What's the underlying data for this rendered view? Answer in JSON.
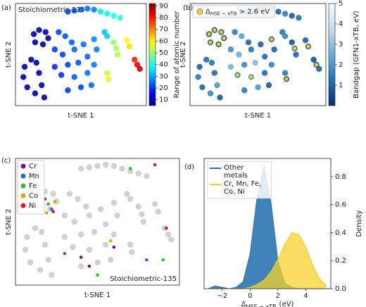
{
  "chart_data": [
    {
      "type": "scatter",
      "panel_label": "(a)",
      "annotation": "Stoichiometric-135",
      "annotation_corner": "upper left",
      "x_label": "t-SNE 1",
      "y_label": "t-SNE 2",
      "xlim": [
        0,
        100
      ],
      "ylim": [
        0,
        100
      ],
      "x": [
        40,
        45,
        50,
        55,
        60,
        65,
        70,
        75,
        80,
        14,
        18,
        23,
        25,
        21,
        15,
        12,
        7,
        6,
        9,
        15,
        22,
        20,
        18,
        16,
        33,
        38,
        43,
        30,
        36,
        45,
        52,
        40,
        48,
        55,
        35,
        45,
        55,
        60,
        50,
        40,
        58,
        30,
        60,
        62,
        75,
        77,
        78,
        85,
        87,
        70,
        71,
        91,
        93,
        95,
        68,
        70
      ],
      "y": [
        92,
        93,
        94,
        95,
        94,
        92,
        90,
        88,
        86,
        70,
        74,
        72,
        66,
        60,
        62,
        45,
        38,
        28,
        18,
        12,
        8,
        20,
        32,
        42,
        72,
        68,
        62,
        55,
        50,
        55,
        60,
        40,
        42,
        48,
        30,
        28,
        32,
        40,
        18,
        15,
        20,
        38,
        65,
        55,
        62,
        56,
        50,
        64,
        58,
        32,
        26,
        45,
        40,
        36,
        72,
        68
      ],
      "c": [
        22,
        24,
        25,
        26,
        27,
        36,
        38,
        40,
        42,
        8,
        8,
        9,
        8,
        9,
        8,
        9,
        8,
        9,
        10,
        9,
        8,
        10,
        9,
        9,
        22,
        23,
        24,
        21,
        22,
        25,
        26,
        22,
        23,
        25,
        20,
        24,
        26,
        27,
        22,
        21,
        25,
        20,
        28,
        27,
        50,
        52,
        53,
        60,
        62,
        55,
        57,
        78,
        82,
        86,
        33,
        34
      ],
      "colorbar": {
        "label": "Range of atomic number",
        "cmap": "jet",
        "clim": [
          5,
          92
        ],
        "ticks": [
          10,
          20,
          30,
          40,
          50,
          60,
          70,
          80,
          90
        ]
      }
    },
    {
      "type": "scatter",
      "panel_label": "(b)",
      "x_label": "t-SNE 1",
      "y_label": "t-SNE 2",
      "xlim": [
        0,
        100
      ],
      "ylim": [
        0,
        100
      ],
      "x": [
        40,
        45,
        50,
        55,
        60,
        65,
        70,
        75,
        80,
        14,
        18,
        23,
        25,
        21,
        15,
        12,
        7,
        6,
        9,
        15,
        22,
        20,
        18,
        16,
        33,
        38,
        43,
        30,
        36,
        45,
        52,
        40,
        48,
        55,
        35,
        45,
        55,
        60,
        50,
        40,
        58,
        30,
        60,
        62,
        75,
        77,
        78,
        85,
        87,
        70,
        71,
        91,
        93,
        95,
        68,
        70
      ],
      "y": [
        92,
        93,
        94,
        95,
        94,
        92,
        90,
        88,
        86,
        70,
        74,
        72,
        66,
        60,
        62,
        45,
        38,
        28,
        18,
        12,
        8,
        20,
        32,
        42,
        72,
        68,
        62,
        55,
        50,
        55,
        60,
        40,
        42,
        48,
        30,
        28,
        32,
        40,
        18,
        15,
        20,
        38,
        65,
        55,
        62,
        56,
        50,
        64,
        58,
        32,
        26,
        45,
        40,
        36,
        72,
        68
      ],
      "c": [
        1.5,
        2.0,
        1.2,
        1.8,
        2.2,
        1.0,
        1.5,
        0.8,
        1.2,
        0.6,
        0.8,
        1.0,
        0.7,
        0.9,
        1.1,
        1.2,
        0.9,
        1.4,
        1.0,
        1.6,
        0.8,
        2.0,
        1.1,
        1.3,
        1.5,
        2.2,
        1.0,
        1.8,
        2.5,
        1.3,
        0.9,
        1.7,
        2.8,
        1.2,
        1.9,
        2.4,
        1.1,
        1.6,
        2.0,
        1.4,
        0.8,
        2.6,
        1.3,
        1.0,
        0.7,
        1.5,
        1.0,
        0.9,
        1.2,
        1.4,
        0.8,
        0.6,
        1.1,
        0.9,
        1.3,
        1.6
      ],
      "highlight": {
        "name": {
          "symbol": "Δ",
          "sub": "HSE − xTB",
          "rest": "> 2.6 eV"
        },
        "color": "#f2d22e",
        "x": [
          14,
          18,
          23,
          25,
          21,
          15,
          77,
          93,
          60,
          87,
          71,
          55,
          45,
          35
        ],
        "y": [
          70,
          74,
          72,
          66,
          60,
          62,
          56,
          40,
          65,
          58,
          26,
          95,
          28,
          30
        ]
      },
      "legend": "upper left",
      "colorbar": {
        "label": "Bandgap (GFN1-xTB, eV)",
        "cmap": "Blues_r",
        "clim": [
          0,
          5
        ],
        "ticks": [
          1,
          2,
          3,
          4,
          5
        ]
      }
    },
    {
      "type": "scatter",
      "panel_label": "(c)",
      "annotation": "Stoichiometric-135",
      "annotation_corner": "lower right",
      "x_label": "t-SNE 1",
      "y_label": "t-SNE 2",
      "xlim": [
        0,
        100
      ],
      "ylim": [
        0,
        100
      ],
      "point_color": "#cccccc",
      "x": [
        40,
        45,
        50,
        55,
        60,
        65,
        70,
        75,
        80,
        14,
        18,
        23,
        25,
        21,
        15,
        12,
        7,
        6,
        9,
        15,
        22,
        20,
        18,
        16,
        33,
        38,
        43,
        30,
        36,
        45,
        52,
        40,
        48,
        55,
        35,
        45,
        55,
        60,
        50,
        40,
        58,
        30,
        60,
        62,
        75,
        77,
        78,
        85,
        87,
        70,
        71,
        91,
        93,
        95,
        68,
        70
      ],
      "y": [
        92,
        93,
        94,
        95,
        94,
        92,
        90,
        88,
        86,
        70,
        74,
        72,
        66,
        60,
        62,
        45,
        38,
        28,
        18,
        12,
        8,
        20,
        32,
        42,
        72,
        68,
        62,
        55,
        50,
        55,
        60,
        40,
        42,
        48,
        30,
        28,
        32,
        40,
        18,
        15,
        20,
        38,
        65,
        55,
        62,
        56,
        50,
        64,
        58,
        32,
        26,
        45,
        40,
        36,
        72,
        68
      ],
      "series": [
        {
          "name": "Cr",
          "color": "#7b0f85",
          "x": [
            40,
            45,
            60
          ],
          "y": [
            22,
            15,
            30
          ]
        },
        {
          "name": "Mn",
          "color": "#2e62d6",
          "x": [
            22,
            30,
            80
          ],
          "y": [
            60,
            25,
            20
          ]
        },
        {
          "name": "Fe",
          "color": "#2fbf2f",
          "x": [
            20,
            50,
            90,
            70
          ],
          "y": [
            64,
            8,
            20,
            92
          ]
        },
        {
          "name": "Co",
          "color": "#f5a000",
          "x": [
            16,
            24,
            58,
            19
          ],
          "y": [
            62,
            66,
            35,
            57
          ]
        },
        {
          "name": "Ni",
          "color": "#d81b2a",
          "x": [
            18,
            23,
            92,
            85
          ],
          "y": [
            68,
            58,
            45,
            95
          ]
        }
      ],
      "legend": "upper left"
    },
    {
      "type": "area",
      "panel_label": "(d)",
      "x_label": {
        "symbol": "Δ",
        "sub": "HSE − xTB",
        "unit": "(eV)"
      },
      "y_label": "Density",
      "y_axis_side": "right",
      "xlim": [
        -3.3,
        5.8
      ],
      "ylim": [
        0,
        0.93
      ],
      "xticks": [
        {
          "value": -2,
          "label": "−2"
        },
        0,
        2,
        4
      ],
      "yticks": [
        {
          "value": 0,
          "label": "0.0"
        },
        0.2,
        0.4,
        0.6,
        0.8
      ],
      "x": [
        -3,
        -2.5,
        -2,
        -1.5,
        -1,
        -0.5,
        0,
        0.5,
        1,
        1.5,
        2,
        2.5,
        3,
        3.5,
        4,
        4.5,
        5,
        5.5
      ],
      "series": [
        {
          "name": "Other metals",
          "color": "#2b75b0",
          "values": [
            0,
            0.02,
            0.01,
            0,
            0.01,
            0.05,
            0.25,
            0.65,
            0.88,
            0.62,
            0.2,
            0.04,
            0.01,
            0,
            0,
            0,
            0,
            0
          ]
        },
        {
          "name": "Cr, Mn, Fe, Co, Ni",
          "color": "#f5d22a",
          "values": [
            0,
            0,
            0,
            0,
            0,
            0,
            0.01,
            0.03,
            0.06,
            0.12,
            0.21,
            0.32,
            0.4,
            0.39,
            0.3,
            0.17,
            0.07,
            0.02
          ]
        }
      ],
      "legend": "upper left"
    }
  ]
}
